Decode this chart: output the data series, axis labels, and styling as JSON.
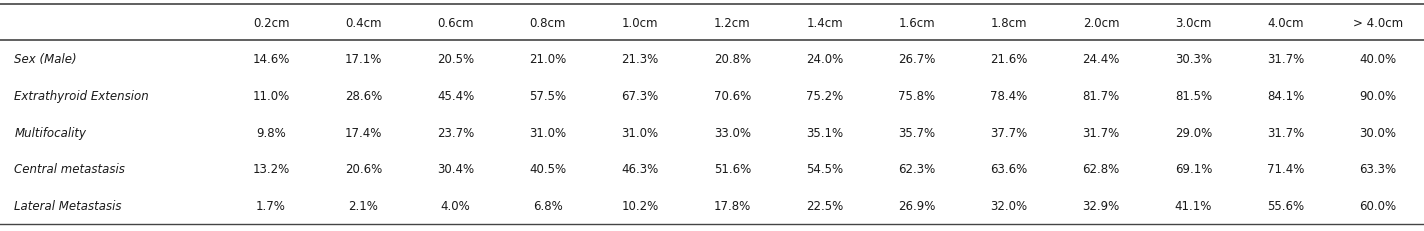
{
  "columns": [
    "0.2cm",
    "0.4cm",
    "0.6cm",
    "0.8cm",
    "1.0cm",
    "1.2cm",
    "1.4cm",
    "1.6cm",
    "1.8cm",
    "2.0cm",
    "3.0cm",
    "4.0cm",
    "> 4.0cm"
  ],
  "rows": [
    {
      "label": "Sex (Male)",
      "values": [
        "14.6%",
        "17.1%",
        "20.5%",
        "21.0%",
        "21.3%",
        "20.8%",
        "24.0%",
        "26.7%",
        "21.6%",
        "24.4%",
        "30.3%",
        "31.7%",
        "40.0%"
      ]
    },
    {
      "label": "Extrathyroid Extension",
      "values": [
        "11.0%",
        "28.6%",
        "45.4%",
        "57.5%",
        "67.3%",
        "70.6%",
        "75.2%",
        "75.8%",
        "78.4%",
        "81.7%",
        "81.5%",
        "84.1%",
        "90.0%"
      ]
    },
    {
      "label": "Multifocality",
      "values": [
        "9.8%",
        "17.4%",
        "23.7%",
        "31.0%",
        "31.0%",
        "33.0%",
        "35.1%",
        "35.7%",
        "37.7%",
        "31.7%",
        "29.0%",
        "31.7%",
        "30.0%"
      ]
    },
    {
      "label": "Central metastasis",
      "values": [
        "13.2%",
        "20.6%",
        "30.4%",
        "40.5%",
        "46.3%",
        "51.6%",
        "54.5%",
        "62.3%",
        "63.6%",
        "62.8%",
        "69.1%",
        "71.4%",
        "63.3%"
      ]
    },
    {
      "label": "Lateral Metastasis",
      "values": [
        "1.7%",
        "2.1%",
        "4.0%",
        "6.8%",
        "10.2%",
        "17.8%",
        "22.5%",
        "26.9%",
        "32.0%",
        "32.9%",
        "41.1%",
        "55.6%",
        "60.0%"
      ]
    }
  ],
  "bg_color": "#ffffff",
  "text_color": "#1a1a1a",
  "font_size": 8.5,
  "label_font_size": 8.5,
  "header_font_size": 8.5,
  "fig_width": 14.24,
  "fig_height": 2.32,
  "dpi": 100
}
